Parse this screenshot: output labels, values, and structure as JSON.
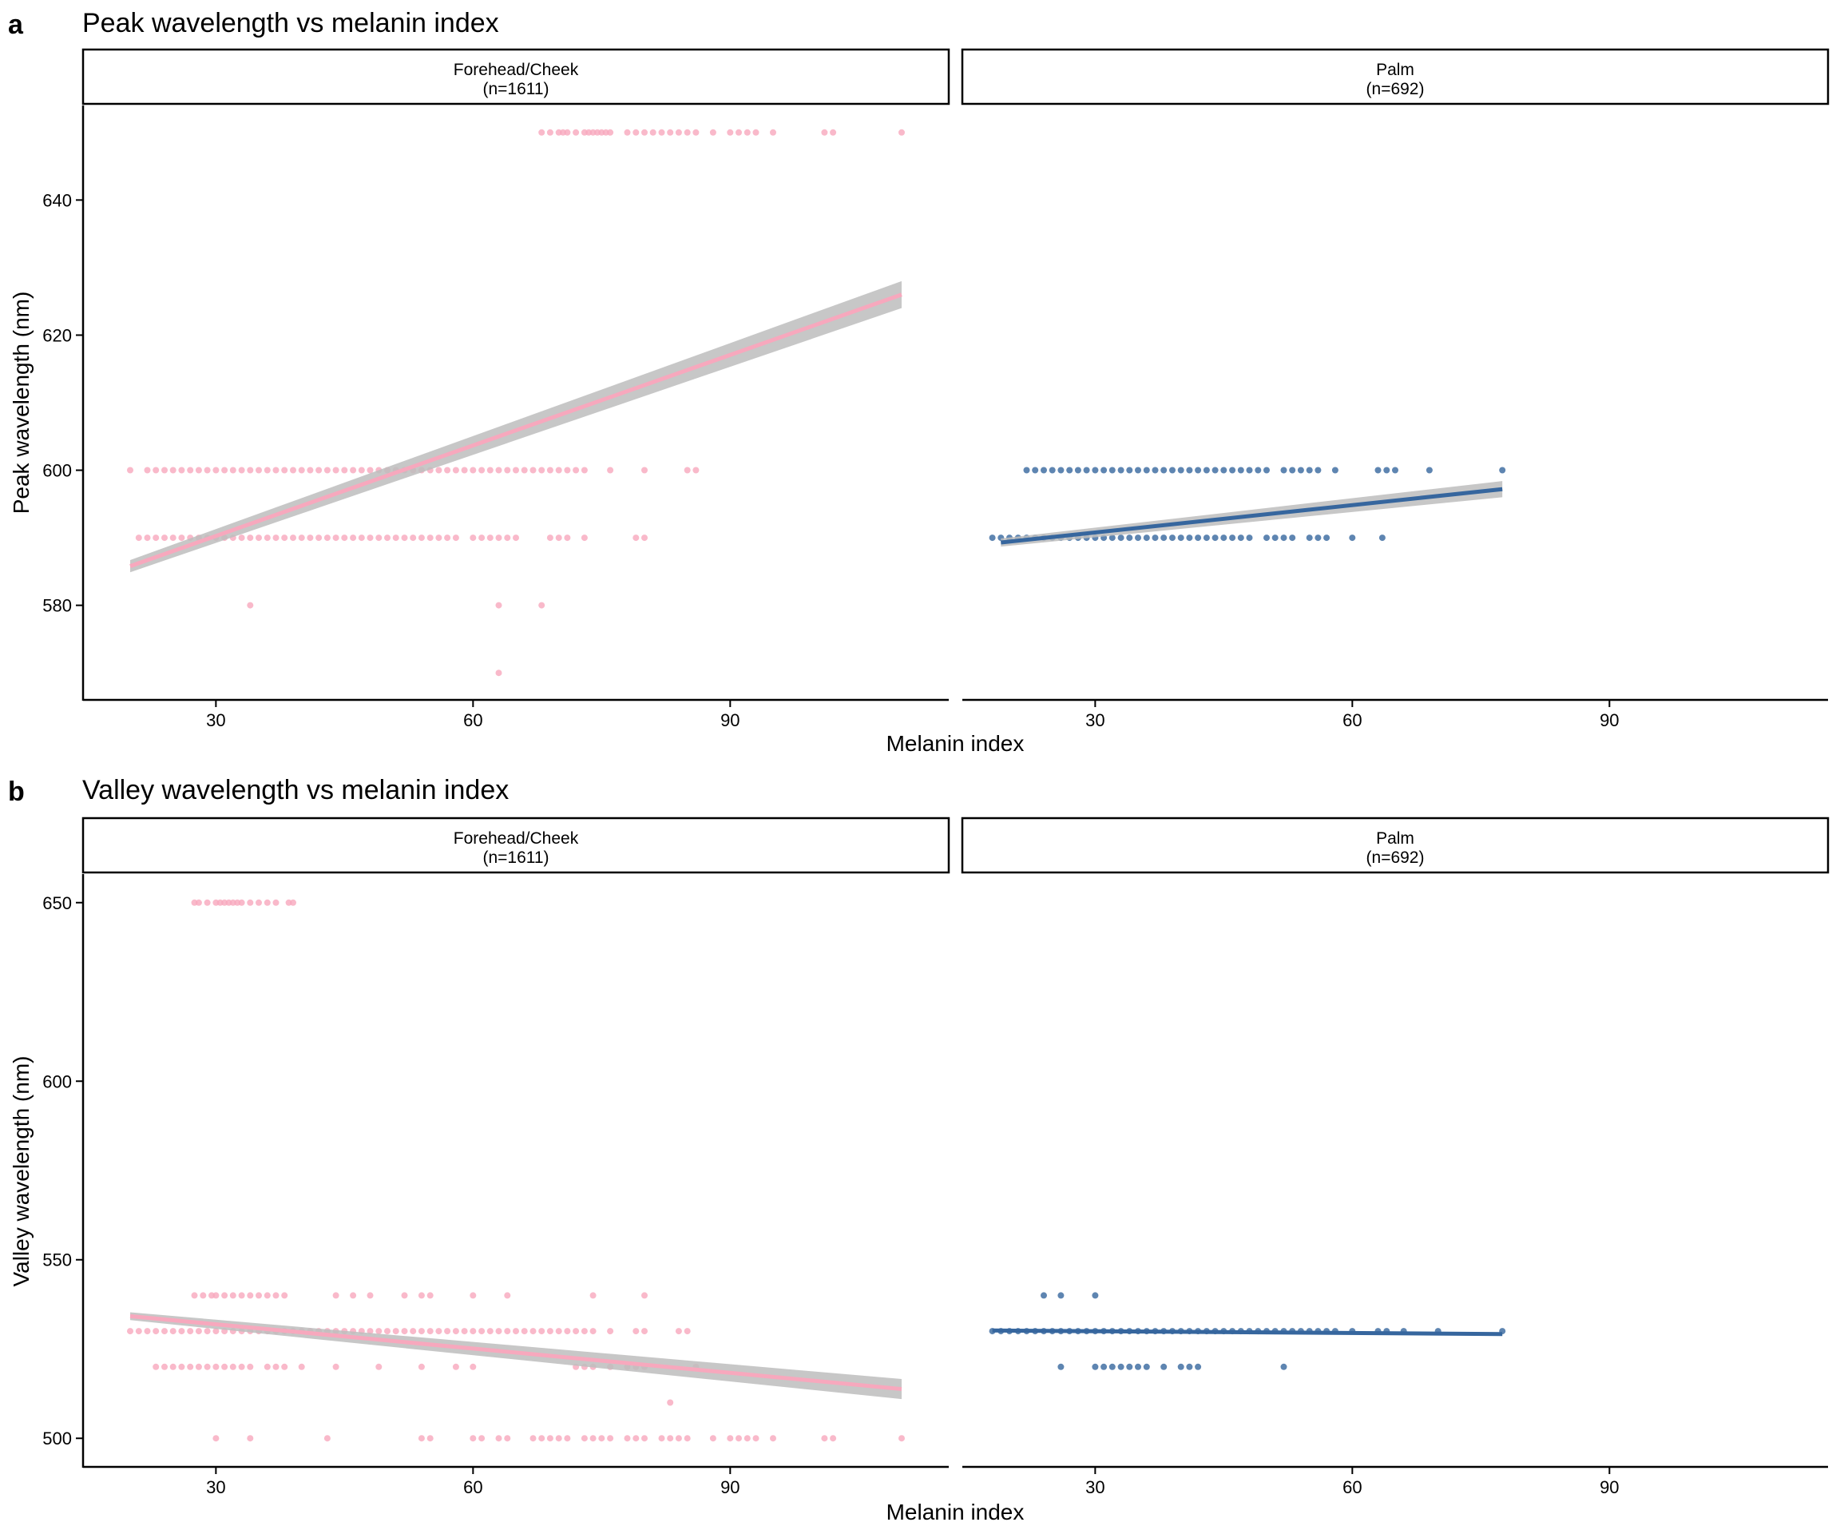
{
  "figure": {
    "panels": [
      {
        "tag": "a",
        "title": "Peak wavelength vs melanin index"
      },
      {
        "tag": "b",
        "title": "Valley wavelength vs melanin index"
      }
    ],
    "colors": {
      "forehead": "#F7A8BD",
      "palm": "#36669E",
      "ribbon": "#BDBDBD"
    }
  },
  "chart_data": [
    {
      "type": "scatter",
      "panel": "a",
      "title": "Peak wavelength vs melanin index",
      "xlabel": "Melanin index",
      "ylabel": "Peak wavelength (nm)",
      "xlim": [
        14.5,
        115.5
      ],
      "ylim": [
        566,
        654
      ],
      "xticks": [
        30,
        60,
        90
      ],
      "yticks": [
        580,
        600,
        620,
        640
      ],
      "facets": [
        {
          "name": "Forehead/Cheek",
          "label": "(n=1611)",
          "color": "#F7A8BD",
          "series": [
            {
              "y": 650,
              "x": [
                68,
                69,
                70,
                70.5,
                71,
                72,
                73,
                73.5,
                74,
                74.5,
                75,
                75.5,
                76,
                78,
                79,
                80,
                81,
                82,
                83,
                84,
                85,
                86,
                88,
                90,
                91,
                92,
                93,
                95,
                101,
                102,
                110
              ]
            },
            {
              "y": 600,
              "x": [
                20,
                22,
                23,
                24,
                25,
                26,
                27,
                28,
                29,
                30,
                31,
                32,
                33,
                34,
                35,
                36,
                37,
                38,
                39,
                40,
                41,
                42,
                43,
                44,
                45,
                46,
                47,
                48,
                49,
                50,
                51,
                52,
                53,
                54,
                55,
                56,
                57,
                58,
                59,
                60,
                61,
                62,
                63,
                64,
                65,
                66,
                67,
                68,
                69,
                70,
                71,
                72,
                73,
                76,
                80,
                85,
                86
              ]
            },
            {
              "y": 590,
              "x": [
                21,
                22,
                23,
                24,
                25,
                26,
                27,
                28,
                29,
                30,
                31,
                32,
                33,
                34,
                35,
                36,
                37,
                38,
                39,
                40,
                41,
                42,
                43,
                44,
                45,
                46,
                47,
                48,
                49,
                50,
                51,
                52,
                53,
                54,
                55,
                56,
                57,
                58,
                60,
                61,
                62,
                63,
                64,
                65,
                69,
                70,
                71,
                73,
                79,
                80
              ]
            },
            {
              "y": 580,
              "x": [
                34,
                63,
                68
              ]
            },
            {
              "y": 570,
              "x": [
                63
              ]
            }
          ],
          "fit": {
            "x": [
              20,
              110
            ],
            "y": [
              585.8,
              626
            ],
            "ci_halfwidth": [
              0.9,
              2
            ]
          }
        },
        {
          "name": "Palm",
          "label": "(n=692)",
          "color": "#36669E",
          "series": [
            {
              "y": 600,
              "x": [
                22,
                23,
                24,
                25,
                26,
                27,
                28,
                29,
                30,
                31,
                32,
                33,
                34,
                35,
                36,
                37,
                38,
                39,
                40,
                41,
                42,
                43,
                44,
                45,
                46,
                47,
                48,
                49,
                50,
                52,
                53,
                54,
                55,
                56,
                58,
                63,
                64,
                65,
                69,
                77.5
              ]
            },
            {
              "y": 590,
              "x": [
                18,
                19,
                20,
                21,
                22,
                23,
                24,
                25,
                26,
                27,
                28,
                29,
                30,
                31,
                32,
                33,
                34,
                35,
                36,
                37,
                38,
                39,
                40,
                41,
                42,
                43,
                44,
                45,
                46,
                47,
                48,
                50,
                51,
                52,
                53,
                55,
                56,
                57,
                60,
                63.5
              ]
            }
          ],
          "fit": {
            "x": [
              19,
              77.5
            ],
            "y": [
              589.3,
              597.2
            ],
            "ci_halfwidth": [
              0.6,
              1.2
            ]
          }
        }
      ]
    },
    {
      "type": "scatter",
      "panel": "b",
      "title": "Valley wavelength vs melanin index",
      "xlabel": "Melanin index",
      "ylabel": "Valley wavelength (nm)",
      "xlim": [
        14.5,
        115.5
      ],
      "ylim": [
        492,
        658
      ],
      "xticks": [
        30,
        60,
        90
      ],
      "yticks": [
        500,
        550,
        600,
        650
      ],
      "facets": [
        {
          "name": "Forehead/Cheek",
          "label": "(n=1611)",
          "color": "#F7A8BD",
          "series": [
            {
              "y": 650,
              "x": [
                27.5,
                28,
                29,
                30,
                30.5,
                31,
                31.5,
                32,
                32.5,
                33,
                34,
                35,
                36,
                37,
                38.5,
                39
              ]
            },
            {
              "y": 540,
              "x": [
                27.5,
                28.5,
                29.5,
                30,
                31,
                32,
                33,
                34,
                35,
                36,
                37,
                38,
                44,
                46,
                48,
                52,
                54,
                55,
                60,
                64,
                74,
                80
              ]
            },
            {
              "y": 530,
              "x": [
                20,
                21,
                22,
                23,
                24,
                25,
                26,
                27,
                28,
                29,
                30,
                31,
                32,
                33,
                34,
                35,
                36,
                37,
                38,
                39,
                40,
                41,
                42,
                43,
                44,
                45,
                46,
                47,
                48,
                49,
                50,
                51,
                52,
                53,
                54,
                55,
                56,
                57,
                58,
                59,
                60,
                61,
                62,
                63,
                64,
                65,
                66,
                67,
                68,
                69,
                70,
                71,
                72,
                73,
                74,
                76,
                79,
                80,
                84,
                85
              ]
            },
            {
              "y": 520,
              "x": [
                23,
                24,
                25,
                26,
                27,
                28,
                29,
                30,
                31,
                32,
                33,
                34,
                36,
                37,
                38,
                40,
                44,
                49,
                54,
                58,
                60,
                72,
                73,
                74,
                76,
                78,
                79,
                80,
                86
              ]
            },
            {
              "y": 510,
              "x": [
                83
              ]
            },
            {
              "y": 500,
              "x": [
                30,
                34,
                43,
                54,
                55,
                60,
                61,
                63,
                64,
                67,
                68,
                69,
                70,
                71,
                73,
                74,
                75,
                76,
                78,
                79,
                80,
                82,
                83,
                84,
                85,
                88,
                90,
                91,
                92,
                93,
                95,
                101,
                102,
                110
              ]
            }
          ],
          "fit": {
            "x": [
              20,
              110
            ],
            "y": [
              534.2,
              513.8
            ],
            "ci_halfwidth": [
              1.1,
              2.8
            ]
          }
        },
        {
          "name": "Palm",
          "label": "(n=692)",
          "color": "#36669E",
          "series": [
            {
              "y": 540,
              "x": [
                24,
                26,
                30
              ]
            },
            {
              "y": 530,
              "x": [
                18,
                19,
                20,
                21,
                22,
                23,
                24,
                25,
                26,
                27,
                28,
                29,
                30,
                31,
                32,
                33,
                34,
                35,
                36,
                37,
                38,
                39,
                40,
                41,
                42,
                43,
                44,
                45,
                46,
                47,
                48,
                49,
                50,
                51,
                52,
                53,
                54,
                55,
                56,
                57,
                58,
                60,
                63,
                64,
                66,
                70,
                77.5
              ]
            },
            {
              "y": 520,
              "x": [
                26,
                30,
                31,
                32,
                33,
                34,
                35,
                36,
                38,
                40,
                41,
                42,
                52
              ]
            }
          ],
          "fit": {
            "x": [
              18,
              77.5
            ],
            "y": [
              530.2,
              529.2
            ],
            "ci_halfwidth": [
              0.4,
              0.5
            ]
          }
        }
      ]
    }
  ]
}
